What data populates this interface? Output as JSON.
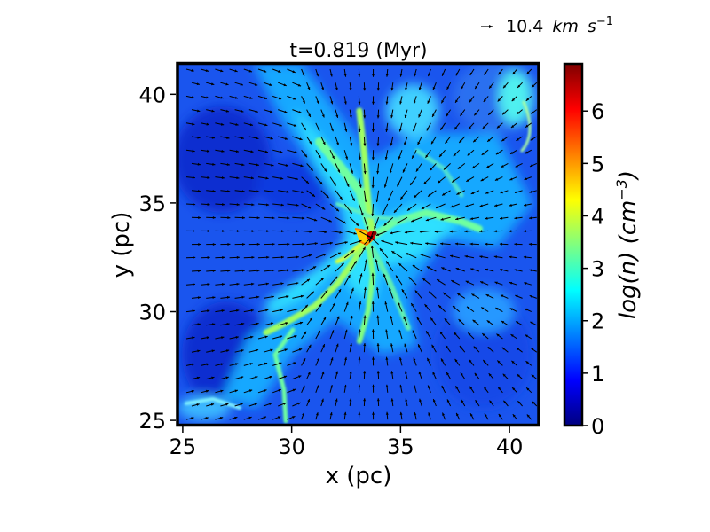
{
  "chart_data": {
    "type": "heatmap",
    "title": "t=0.819 (Myr)",
    "xlabel": "x (pc)",
    "ylabel": "y (pc)",
    "xlim": [
      24.8,
      41.3
    ],
    "ylim": [
      24.8,
      41.4
    ],
    "xticks": [
      25,
      30,
      35,
      40
    ],
    "yticks": [
      25,
      30,
      35,
      40
    ],
    "colorbar": {
      "label": "log(n) (cm⁻³)",
      "range": [
        0,
        6.9
      ],
      "ticks": [
        0,
        1,
        2,
        3,
        4,
        5,
        6
      ],
      "colormap": "jet"
    },
    "overlay": "velocity vector field (quiver)",
    "quiver_key": {
      "value": "10.4",
      "unit": "km s⁻¹",
      "superscript": "−1"
    },
    "colors": {
      "arrow": "#000000",
      "frame": "#000000"
    }
  }
}
